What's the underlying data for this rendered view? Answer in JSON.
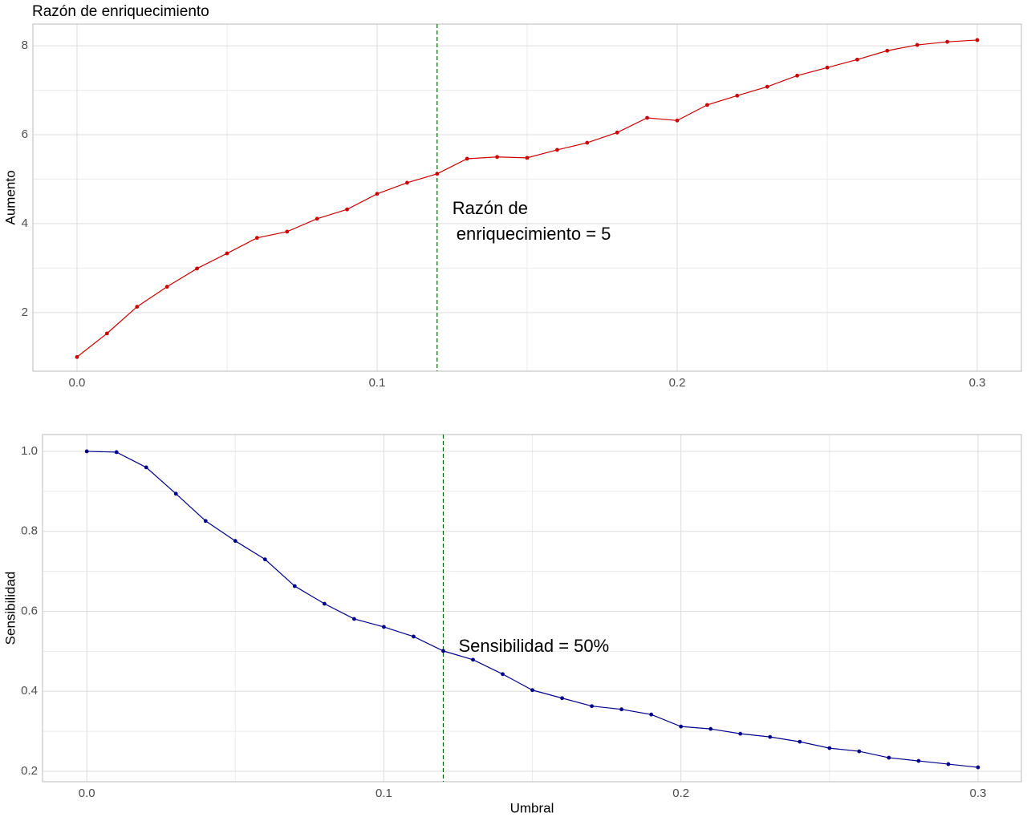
{
  "chart_data": [
    {
      "type": "line",
      "title": "Razón de enriquecimiento",
      "y_label": "Aumento",
      "x": [
        0,
        0.01,
        0.02,
        0.03,
        0.04,
        0.05,
        0.06,
        0.07,
        0.08,
        0.09,
        0.1,
        0.11,
        0.12,
        0.13,
        0.14,
        0.15,
        0.16,
        0.17,
        0.18,
        0.19,
        0.2,
        0.21,
        0.22,
        0.23,
        0.24,
        0.25,
        0.26,
        0.27,
        0.28,
        0.29,
        0.3
      ],
      "series": [
        {
          "color": "#cc0000",
          "values": [
            1.0,
            1.53,
            2.13,
            2.58,
            2.99,
            3.33,
            3.68,
            3.82,
            4.11,
            4.32,
            4.67,
            4.92,
            5.12,
            5.46,
            5.5,
            5.48,
            5.66,
            5.82,
            6.05,
            6.38,
            6.32,
            6.67,
            6.88,
            7.08,
            7.33,
            7.51,
            7.69,
            7.89,
            8.02,
            8.09,
            8.13
          ]
        }
      ],
      "xlim": [
        -0.0147,
        0.3147
      ],
      "ylim": [
        0.68,
        8.49
      ],
      "xticks": [
        {
          "value": 0,
          "label": "0.0"
        },
        0.1,
        0.2,
        0.3
      ],
      "yticks": [
        2,
        4,
        6,
        8
      ],
      "grid": true,
      "vline": 0.12,
      "vline_color": "#006400",
      "annotation": [
        "Razón de",
        "enriquecimiento = 5"
      ]
    },
    {
      "type": "line",
      "y_label": "Sensibilidad",
      "x_label": "Umbral",
      "x": [
        0,
        0.01,
        0.02,
        0.03,
        0.04,
        0.05,
        0.06,
        0.07,
        0.08,
        0.09,
        0.1,
        0.11,
        0.12,
        0.13,
        0.14,
        0.15,
        0.16,
        0.17,
        0.18,
        0.19,
        0.2,
        0.21,
        0.22,
        0.23,
        0.24,
        0.25,
        0.26,
        0.27,
        0.28,
        0.29,
        0.3
      ],
      "series": [
        {
          "color": "#00008b",
          "values": [
            1.0,
            0.998,
            0.96,
            0.894,
            0.826,
            0.776,
            0.73,
            0.663,
            0.619,
            0.581,
            0.561,
            0.537,
            0.501,
            0.479,
            0.443,
            0.403,
            0.383,
            0.363,
            0.355,
            0.342,
            0.312,
            0.306,
            0.294,
            0.286,
            0.274,
            0.258,
            0.25,
            0.234,
            0.226,
            0.218,
            0.21
          ]
        }
      ],
      "xlim": [
        -0.0149,
        0.3146
      ],
      "ylim": [
        0.174,
        1.042
      ],
      "xticks": [
        {
          "value": 0,
          "label": "0.0"
        },
        0.1,
        0.2,
        0.3
      ],
      "yticks": [
        0.2,
        0.4,
        0.6,
        0.8,
        {
          "value": 1,
          "label": "1.0"
        }
      ],
      "grid": true,
      "vline": 0.12,
      "vline_color": "#006400",
      "annotation": [
        "Sensibilidad = 50%"
      ]
    }
  ]
}
